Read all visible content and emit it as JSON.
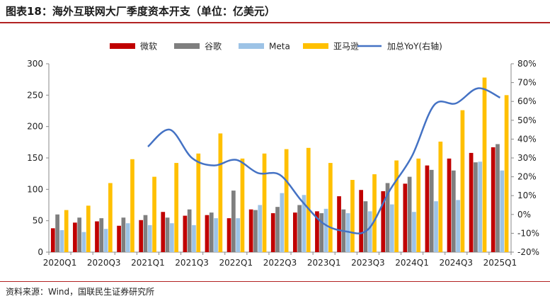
{
  "header": {
    "title": "图表18：海外互联网大厂季度资本开支（单位：亿美元）"
  },
  "footer": {
    "source": "资料来源：Wind，国联民生证券研究所"
  },
  "chart_data": {
    "type": "bar",
    "categories": [
      "2020Q1",
      "2020Q2",
      "2020Q3",
      "2020Q4",
      "2021Q1",
      "2021Q2",
      "2021Q3",
      "2021Q4",
      "2022Q1",
      "2022Q2",
      "2022Q3",
      "2022Q4",
      "2023Q1",
      "2023Q2",
      "2023Q3",
      "2023Q4",
      "2024Q1",
      "2024Q2",
      "2024Q3",
      "2024Q4",
      "2025Q1"
    ],
    "x_tick_labels": [
      "2020Q1",
      "",
      "2020Q3",
      "",
      "2021Q1",
      "",
      "2021Q3",
      "",
      "2022Q1",
      "",
      "2022Q3",
      "",
      "2023Q1",
      "",
      "2023Q3",
      "",
      "2024Q1",
      "",
      "2024Q3",
      "",
      "2025Q1"
    ],
    "series": [
      {
        "name": "微软",
        "color": "#c00000",
        "values": [
          38,
          47,
          49,
          42,
          51,
          64,
          58,
          59,
          54,
          68,
          62,
          63,
          65,
          89,
          99,
          97,
          109,
          138,
          149,
          158,
          167
        ]
      },
      {
        "name": "谷歌",
        "color": "#7f7f7f",
        "values": [
          60,
          55,
          54,
          55,
          59,
          55,
          68,
          63,
          98,
          67,
          72,
          75,
          62,
          68,
          81,
          110,
          120,
          131,
          130,
          143,
          172
        ]
      },
      {
        "name": "Meta",
        "color": "#9dc3e6",
        "values": [
          35,
          32,
          37,
          46,
          43,
          46,
          43,
          54,
          54,
          75,
          94,
          91,
          69,
          62,
          65,
          76,
          64,
          81,
          83,
          144,
          130
        ]
      },
      {
        "name": "亚马逊",
        "color": "#ffc000",
        "values": [
          67,
          74,
          110,
          148,
          120,
          142,
          157,
          189,
          149,
          157,
          164,
          166,
          142,
          115,
          124,
          146,
          149,
          176,
          226,
          278,
          250
        ]
      },
      {
        "name": "加总YoY(右轴)",
        "color": "#4472c4",
        "axis": "right",
        "type": "line",
        "values": [
          null,
          null,
          null,
          null,
          36,
          45,
          30,
          26,
          29,
          22,
          21,
          7,
          -5,
          -9,
          -8,
          13,
          31,
          58,
          59,
          67,
          62
        ]
      }
    ],
    "ylim": [
      0,
      300
    ],
    "y_ticks": [
      "0",
      "50",
      "100",
      "150",
      "200",
      "250",
      "300"
    ],
    "y2lim": [
      -20,
      80
    ],
    "y2_ticks": [
      "-20%",
      "-10%",
      "0%",
      "10%",
      "20%",
      "30%",
      "40%",
      "50%",
      "60%",
      "70%",
      "80%"
    ],
    "legend_position": "top-center",
    "grid": false
  }
}
